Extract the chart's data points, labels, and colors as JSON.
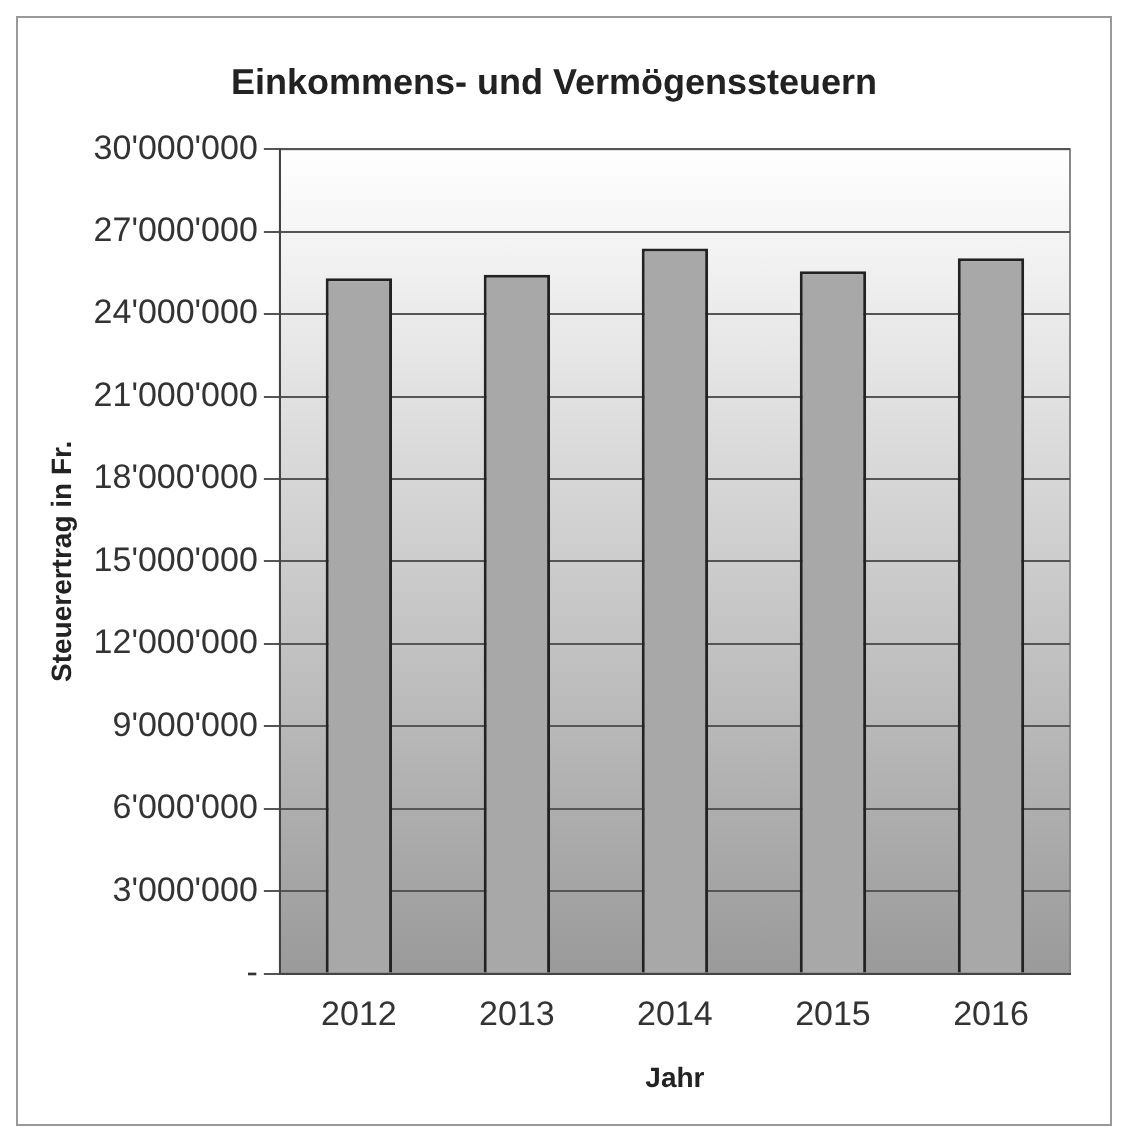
{
  "chart_data": {
    "type": "bar",
    "title": "Einkommens- und Vermögenssteuern",
    "xlabel": "Jahr",
    "ylabel": "Steuerertrag in Fr.",
    "categories": [
      "2012",
      "2013",
      "2014",
      "2015",
      "2016"
    ],
    "values": [
      25300000,
      25430000,
      26390000,
      25560000,
      26030000
    ],
    "color": "#a8a8a8",
    "ylim": [
      0,
      30000000
    ],
    "yticks": [
      {
        "value": 0,
        "label": "-"
      },
      {
        "value": 3000000,
        "label": "3'000'000"
      },
      {
        "value": 6000000,
        "label": "6'000'000"
      },
      {
        "value": 9000000,
        "label": "9'000'000"
      },
      {
        "value": 12000000,
        "label": "12'000'000"
      },
      {
        "value": 15000000,
        "label": "15'000'000"
      },
      {
        "value": 18000000,
        "label": "18'000'000"
      },
      {
        "value": 21000000,
        "label": "21'000'000"
      },
      {
        "value": 24000000,
        "label": "24'000'000"
      },
      {
        "value": 27000000,
        "label": "27'000'000"
      },
      {
        "value": 30000000,
        "label": "30'000'000"
      }
    ],
    "grid": "y",
    "legend": false
  }
}
